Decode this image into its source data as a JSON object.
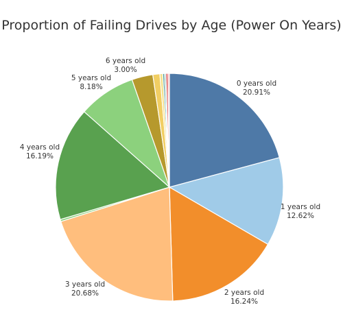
{
  "chart_data": {
    "type": "pie",
    "title": "Proportion of Failing Drives by Age (Power On Years)",
    "slices": [
      {
        "label": "0 years old",
        "pct_text": "20.91%",
        "value": 20.91,
        "color": "#4e79a7"
      },
      {
        "label": "1 years old",
        "pct_text": "12.62%",
        "value": 12.62,
        "color": "#a0cbe8"
      },
      {
        "label": "2 years old",
        "pct_text": "16.24%",
        "value": 16.24,
        "color": "#f28e2b"
      },
      {
        "label": "3 years old",
        "pct_text": "20.68%",
        "value": 20.68,
        "color": "#ffbe7d"
      },
      {
        "label": "",
        "pct_text": "",
        "value": 0.3,
        "color": "#8cd17d"
      },
      {
        "label": "4 years old",
        "pct_text": "16.19%",
        "value": 16.19,
        "color": "#59a14f"
      },
      {
        "label": "5 years old",
        "pct_text": "8.18%",
        "value": 8.18,
        "color": "#8cd17d"
      },
      {
        "label": "6 years old",
        "pct_text": "3.00%",
        "value": 3.0,
        "color": "#b6992d"
      },
      {
        "label": "",
        "pct_text": "",
        "value": 1.0,
        "color": "#f1ce63"
      },
      {
        "label": "",
        "pct_text": "",
        "value": 0.4,
        "color": "#f5e08a"
      },
      {
        "label": "",
        "pct_text": "",
        "value": 0.25,
        "color": "#499894"
      },
      {
        "label": "",
        "pct_text": "",
        "value": 0.2,
        "color": "#86bcb6"
      },
      {
        "label": "",
        "pct_text": "",
        "value": 0.3,
        "color": "#e15759"
      },
      {
        "label": "",
        "pct_text": "",
        "value": 0.2,
        "color": "#ff9d9a"
      }
    ]
  }
}
